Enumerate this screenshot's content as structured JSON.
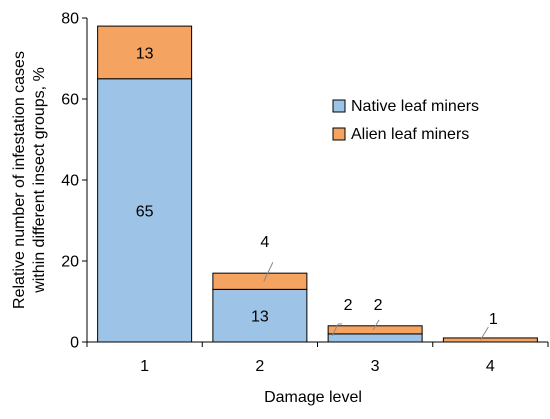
{
  "chart_data": {
    "type": "bar",
    "stacked": true,
    "categories": [
      "1",
      "2",
      "3",
      "4"
    ],
    "series": [
      {
        "name": "Native leaf miners",
        "values": [
          65,
          13,
          2,
          0
        ],
        "color": "#9dc3e6"
      },
      {
        "name": "Alien leaf miners",
        "values": [
          13,
          4,
          2,
          1
        ],
        "color": "#f4a460"
      }
    ],
    "data_labels": {
      "native": [
        "65",
        "13",
        "2",
        ""
      ],
      "alien": [
        "13",
        "4",
        "2",
        "1"
      ]
    },
    "title": "",
    "xlabel": "Damage level",
    "ylabel": "Relative number of infestation cases within different insect groups, %",
    "ylabel_lines": [
      "Relative number of infestation cases",
      "within different insect groups, %"
    ],
    "ylim": [
      0,
      80
    ],
    "yticks": [
      0,
      20,
      40,
      60,
      80
    ],
    "grid": false,
    "legend_position": "right-center"
  }
}
